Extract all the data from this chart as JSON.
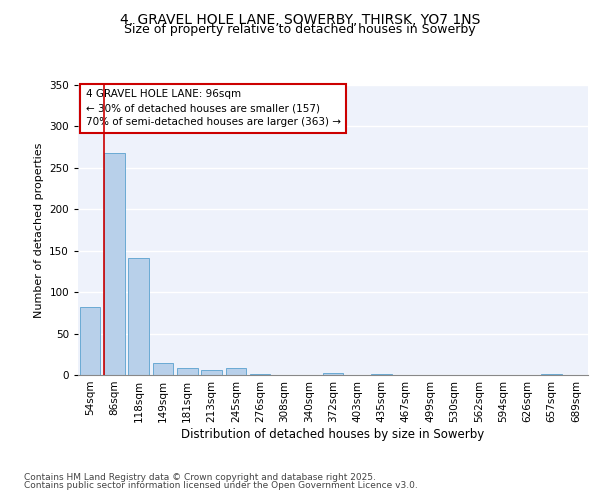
{
  "title": "4, GRAVEL HOLE LANE, SOWERBY, THIRSK, YO7 1NS",
  "subtitle": "Size of property relative to detached houses in Sowerby",
  "xlabel": "Distribution of detached houses by size in Sowerby",
  "ylabel": "Number of detached properties",
  "categories": [
    "54sqm",
    "86sqm",
    "118sqm",
    "149sqm",
    "181sqm",
    "213sqm",
    "245sqm",
    "276sqm",
    "308sqm",
    "340sqm",
    "372sqm",
    "403sqm",
    "435sqm",
    "467sqm",
    "499sqm",
    "530sqm",
    "562sqm",
    "594sqm",
    "626sqm",
    "657sqm",
    "689sqm"
  ],
  "values": [
    82,
    268,
    141,
    14,
    8,
    6,
    9,
    1,
    0,
    0,
    2,
    0,
    1,
    0,
    0,
    0,
    0,
    0,
    0,
    1,
    0
  ],
  "bar_color": "#b8d0ea",
  "bar_edge_color": "#6aaad4",
  "annotation_line1": "4 GRAVEL HOLE LANE: 96sqm",
  "annotation_line2": "← 30% of detached houses are smaller (157)",
  "annotation_line3": "70% of semi-detached houses are larger (363) →",
  "annotation_box_color": "#ffffff",
  "annotation_box_edge": "#cc0000",
  "vline_color": "#cc0000",
  "ylim": [
    0,
    350
  ],
  "yticks": [
    0,
    50,
    100,
    150,
    200,
    250,
    300,
    350
  ],
  "background_color": "#eef2fb",
  "footer_line1": "Contains HM Land Registry data © Crown copyright and database right 2025.",
  "footer_line2": "Contains public sector information licensed under the Open Government Licence v3.0.",
  "title_fontsize": 10,
  "subtitle_fontsize": 9,
  "xlabel_fontsize": 8.5,
  "ylabel_fontsize": 8,
  "tick_fontsize": 7.5,
  "annotation_fontsize": 7.5,
  "footer_fontsize": 6.5
}
